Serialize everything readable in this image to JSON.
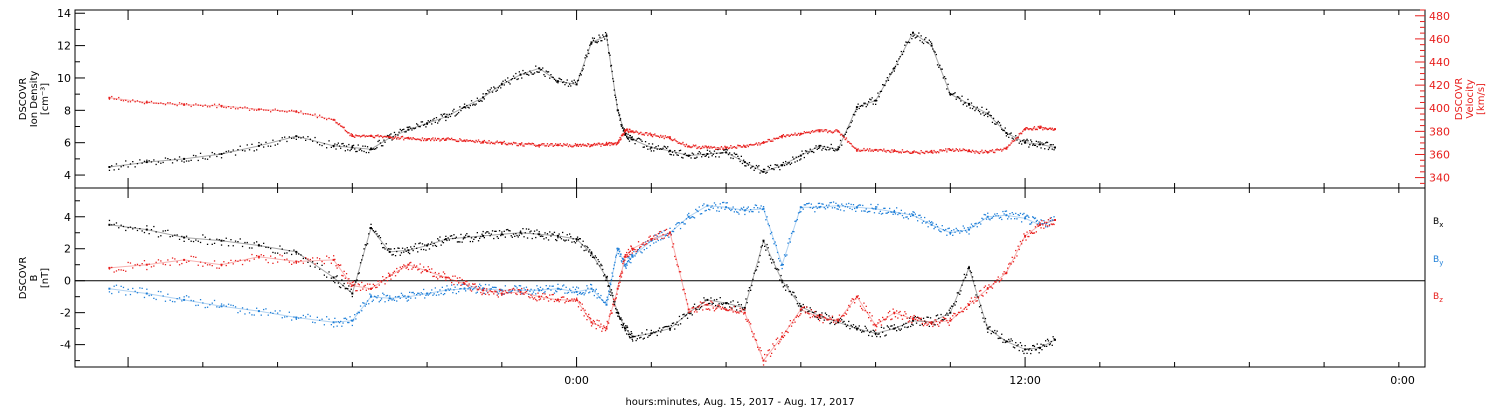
{
  "colors": {
    "black": "#000000",
    "red": "#e8201e",
    "blue": "#1f7fd8",
    "frame": "#000000"
  },
  "chart_data": [
    {
      "type": "scatter",
      "panel": "top",
      "ylabel_left": [
        "DSCOVR",
        "Ion Density",
        "[cm⁻³]"
      ],
      "ylabel_right": [
        "DSCOVR",
        "Velocity",
        "[km/s]"
      ],
      "ylim_left": [
        3.2,
        14.2
      ],
      "ylim_right": [
        331,
        485
      ],
      "yticks_left": [
        4,
        6,
        8,
        10,
        12,
        14
      ],
      "yticks_right": [
        340,
        360,
        380,
        400,
        420,
        440,
        460,
        480
      ],
      "series": [
        {
          "axis": "left",
          "color": "black",
          "x": [
            -12.5,
            -11.5,
            -10.5,
            -9.5,
            -8.5,
            -7.5,
            -6.5,
            -6.0,
            -5.5,
            -5.0,
            -4.5,
            -4.0,
            -3.5,
            -3.0,
            -2.5,
            -2.0,
            -1.5,
            -1.0,
            -0.5,
            0.0,
            0.4,
            0.8,
            1.1,
            1.3,
            1.5,
            2.0,
            2.5,
            3.0,
            3.5,
            4.0,
            4.5,
            5.0,
            5.5,
            6.0,
            6.5,
            7.0,
            7.5,
            8.0,
            8.5,
            9.0,
            9.5,
            10.0,
            10.5,
            11.0,
            11.5,
            12.0,
            12.4,
            12.8
          ],
          "y": [
            4.5,
            4.8,
            5.0,
            5.3,
            5.8,
            6.4,
            5.8,
            5.7,
            5.6,
            6.3,
            6.8,
            7.2,
            7.6,
            8.2,
            8.8,
            9.6,
            10.2,
            10.6,
            9.8,
            9.6,
            12.2,
            12.6,
            8.0,
            6.5,
            6.2,
            5.7,
            5.5,
            5.2,
            5.3,
            5.4,
            4.8,
            4.2,
            4.6,
            5.2,
            5.8,
            5.6,
            8.2,
            8.6,
            10.6,
            12.8,
            12.0,
            9.0,
            8.4,
            7.8,
            6.6,
            6.0,
            5.9,
            5.7
          ]
        },
        {
          "axis": "right",
          "color": "red",
          "x": [
            -12.5,
            -11.5,
            -10.5,
            -9.5,
            -8.5,
            -7.5,
            -6.5,
            -6.0,
            -5.5,
            -5.0,
            -4.5,
            -4.0,
            -3.5,
            -3.0,
            -2.5,
            -2.0,
            -1.5,
            -1.0,
            -0.5,
            0.0,
            0.4,
            0.8,
            1.1,
            1.3,
            1.5,
            2.0,
            2.5,
            3.0,
            3.5,
            4.0,
            4.5,
            5.0,
            5.5,
            6.0,
            6.5,
            7.0,
            7.5,
            8.0,
            8.5,
            9.0,
            9.5,
            10.0,
            10.5,
            11.0,
            11.5,
            12.0,
            12.4,
            12.8
          ],
          "y": [
            409,
            405,
            403,
            402,
            399,
            397,
            390,
            376,
            376,
            375,
            374,
            373,
            373,
            372,
            371,
            370,
            369,
            368,
            368,
            368,
            368,
            369,
            370,
            381,
            380,
            377,
            374,
            367,
            366,
            366,
            367,
            370,
            376,
            378,
            380,
            380,
            364,
            364,
            363,
            362,
            362,
            364,
            363,
            362,
            365,
            382,
            383,
            382
          ]
        }
      ]
    },
    {
      "type": "scatter",
      "panel": "bottom",
      "ylabel_left": [
        "DSCOVR",
        "B",
        "[nT]"
      ],
      "ylim": [
        -5.4,
        5.8
      ],
      "yticks": [
        -4,
        -2,
        0,
        2,
        4
      ],
      "xlabel": "hours:minutes, Aug. 15, 2017 - Aug. 17, 2017",
      "x_tick_labels": [
        "0:00",
        "12:00",
        "0:00"
      ],
      "legend": [
        {
          "label": "Bx",
          "base": "B",
          "sub": "x",
          "color": "black"
        },
        {
          "label": "By",
          "base": "B",
          "sub": "y",
          "color": "blue"
        },
        {
          "label": "Bz",
          "base": "B",
          "sub": "z",
          "color": "red"
        }
      ],
      "series": [
        {
          "name": "Bx",
          "color": "black",
          "x": [
            -12.5,
            -11.5,
            -10.5,
            -9.5,
            -8.5,
            -7.5,
            -6.5,
            -6.0,
            -5.5,
            -5.0,
            -4.5,
            -4.0,
            -3.5,
            -3.0,
            -2.5,
            -2.0,
            -1.5,
            -1.0,
            -0.5,
            0.0,
            0.4,
            0.8,
            1.1,
            1.3,
            1.5,
            2.0,
            2.5,
            3.0,
            3.5,
            4.0,
            4.5,
            5.0,
            5.5,
            6.0,
            6.5,
            7.0,
            7.5,
            8.0,
            8.5,
            9.0,
            9.5,
            10.0,
            10.5,
            11.0,
            11.5,
            12.0,
            12.4,
            12.8
          ],
          "y": [
            3.5,
            3.2,
            2.7,
            2.5,
            2.2,
            1.8,
            0.2,
            -0.8,
            3.3,
            1.8,
            1.9,
            2.2,
            2.6,
            2.7,
            2.8,
            2.9,
            3.0,
            2.9,
            2.8,
            2.6,
            1.7,
            0.2,
            -2.0,
            -3.0,
            -3.5,
            -3.3,
            -3.0,
            -2.0,
            -1.2,
            -1.4,
            -1.7,
            2.5,
            0.0,
            -1.6,
            -2.2,
            -2.6,
            -3.0,
            -3.3,
            -3.0,
            -2.5,
            -2.6,
            -2.0,
            0.8,
            -3.0,
            -3.8,
            -4.3,
            -4.2,
            -3.7
          ]
        },
        {
          "name": "By",
          "color": "blue",
          "x": [
            -12.5,
            -11.5,
            -10.5,
            -9.5,
            -8.5,
            -7.5,
            -6.5,
            -6.0,
            -5.5,
            -5.0,
            -4.5,
            -4.0,
            -3.5,
            -3.0,
            -2.5,
            -2.0,
            -1.5,
            -1.0,
            -0.5,
            0.0,
            0.4,
            0.8,
            1.1,
            1.3,
            1.5,
            2.0,
            2.5,
            3.0,
            3.5,
            4.0,
            4.5,
            5.0,
            5.5,
            6.0,
            6.5,
            7.0,
            7.5,
            8.0,
            8.5,
            9.0,
            9.5,
            10.0,
            10.5,
            11.0,
            11.5,
            12.0,
            12.4,
            12.8
          ],
          "y": [
            -0.5,
            -0.8,
            -1.2,
            -1.6,
            -1.9,
            -2.3,
            -2.6,
            -2.5,
            -1.0,
            -1.1,
            -1.0,
            -0.8,
            -0.6,
            -0.5,
            -0.5,
            -0.6,
            -0.6,
            -0.6,
            -0.5,
            -0.7,
            -0.5,
            -1.5,
            2.0,
            1.0,
            1.5,
            2.5,
            3.0,
            4.0,
            4.7,
            4.6,
            4.4,
            4.5,
            1.0,
            4.6,
            4.6,
            4.7,
            4.6,
            4.5,
            4.3,
            4.1,
            3.5,
            3.0,
            3.2,
            4.0,
            4.1,
            3.9,
            3.5,
            3.8
          ]
        },
        {
          "name": "Bz",
          "color": "red",
          "x": [
            -12.5,
            -11.5,
            -10.5,
            -9.5,
            -8.5,
            -7.5,
            -6.5,
            -6.0,
            -5.5,
            -5.0,
            -4.5,
            -4.0,
            -3.5,
            -3.0,
            -2.5,
            -2.0,
            -1.5,
            -1.0,
            -0.5,
            0.0,
            0.4,
            0.8,
            1.1,
            1.3,
            1.5,
            2.0,
            2.5,
            3.0,
            3.5,
            4.0,
            4.5,
            5.0,
            5.5,
            6.0,
            6.5,
            7.0,
            7.5,
            8.0,
            8.5,
            9.0,
            9.5,
            10.0,
            10.5,
            11.0,
            11.5,
            12.0,
            12.4,
            12.8
          ],
          "y": [
            0.8,
            1.0,
            1.3,
            1.0,
            1.5,
            1.2,
            1.3,
            -0.3,
            -0.5,
            0.3,
            1.0,
            0.6,
            0.2,
            -0.2,
            -0.6,
            -0.8,
            -0.7,
            -1.0,
            -1.2,
            -1.2,
            -2.6,
            -3.0,
            -0.5,
            1.5,
            2.0,
            2.6,
            3.0,
            -1.8,
            -1.5,
            -1.8,
            -2.0,
            -5.0,
            -3.5,
            -1.8,
            -2.3,
            -2.5,
            -1.0,
            -2.8,
            -2.0,
            -2.4,
            -2.6,
            -2.5,
            -1.5,
            -0.5,
            0.5,
            2.8,
            3.5,
            3.8
          ]
        }
      ]
    }
  ]
}
